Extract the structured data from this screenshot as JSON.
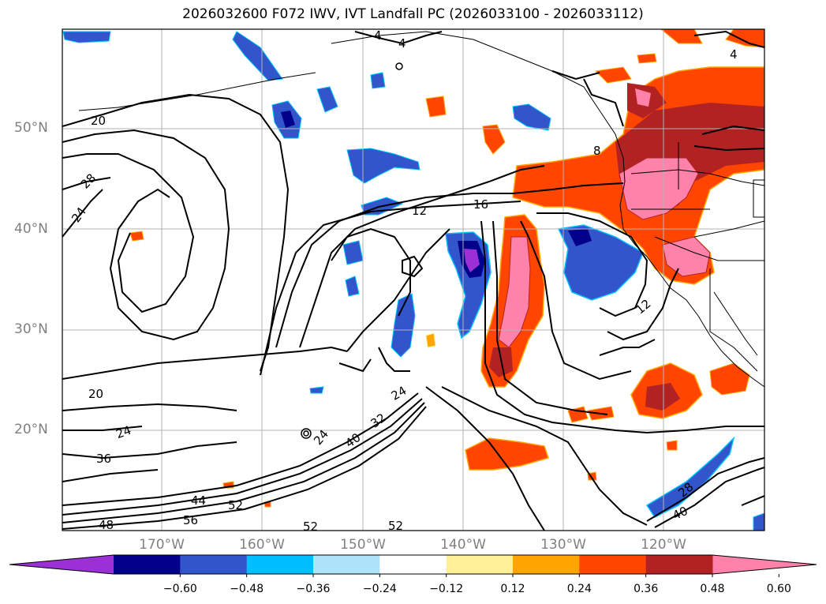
{
  "title": "2026032600 F072 IWV, IVT Landfall PC (2026033100 - 2026033112)",
  "lat_labels": [
    "50°N",
    "40°N",
    "30°N",
    "20°N"
  ],
  "lon_labels": [
    "170°W",
    "160°W",
    "150°W",
    "140°W",
    "130°W",
    "120°W"
  ],
  "colorbar": {
    "ticks": [
      "−0.60",
      "−0.48",
      "−0.36",
      "−0.24",
      "−0.12",
      "0.12",
      "0.24",
      "0.36",
      "0.48",
      "0.60"
    ],
    "colors": [
      "#9b30d6",
      "#00008b",
      "#3355cc",
      "#00bfff",
      "#aee3fb",
      "#ffffff",
      "#fff099",
      "#ffa500",
      "#ff4500",
      "#b22222",
      "#ff82ab"
    ]
  },
  "contour_labels": [
    "4",
    "4",
    "4",
    "20",
    "28",
    "24",
    "12",
    "16",
    "8",
    "12",
    "20",
    "24",
    "36",
    "24",
    "40",
    "32",
    "24",
    "44",
    "52",
    "56",
    "48",
    "52",
    "52",
    "28",
    "40"
  ],
  "colors": {
    "contour": "#000000",
    "coast": "#000000",
    "grid": "#b3b3b3",
    "axis_label": "#808080"
  }
}
